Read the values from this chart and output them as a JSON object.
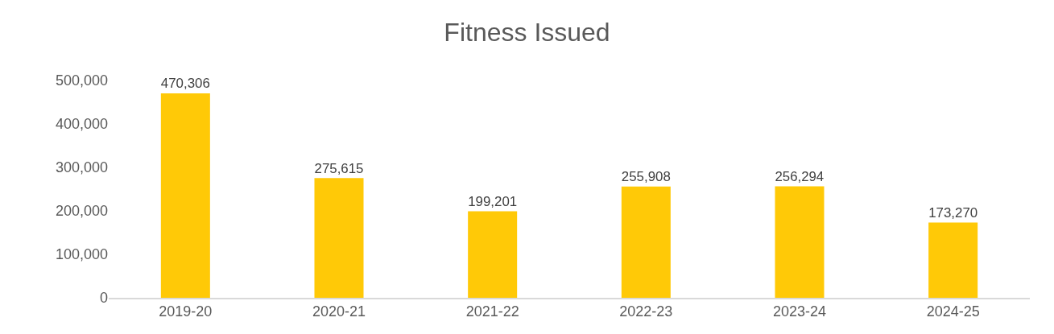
{
  "chart_data": {
    "type": "bar",
    "title": "Fitness Issued",
    "categories": [
      "2019-20",
      "2020-21",
      "2021-22",
      "2022-23",
      "2023-24",
      "2024-25"
    ],
    "values": [
      470306,
      275615,
      199201,
      255908,
      256294,
      173270
    ],
    "color": "#ffc907",
    "ylim": [
      0,
      500000
    ],
    "yticks": [
      {
        "value": 0,
        "label": "0"
      },
      {
        "value": 100000,
        "label": "100,000"
      },
      {
        "value": 200000,
        "label": "200,000"
      },
      {
        "value": 300000,
        "label": "300,000"
      },
      {
        "value": 400000,
        "label": "400,000"
      },
      {
        "value": 500000,
        "label": "500,000"
      }
    ],
    "value_labels": [
      "470,306",
      "275,615",
      "199,201",
      "255,908",
      "256,294",
      "173,270"
    ],
    "grid": false
  }
}
